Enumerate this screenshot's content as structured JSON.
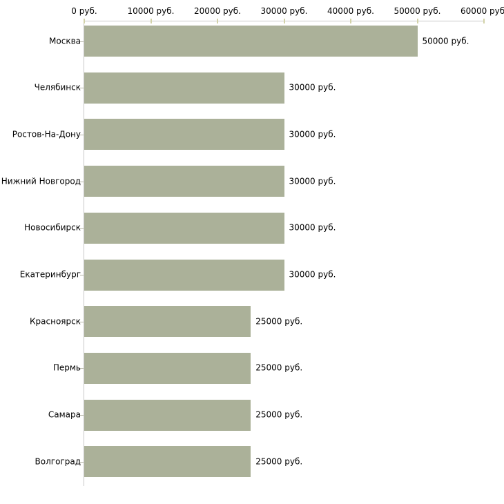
{
  "chart_data": {
    "type": "bar",
    "orientation": "horizontal",
    "title": "",
    "categories": [
      "Москва",
      "Челябинск",
      "Ростов-На-Дону",
      "Нижний Новгород",
      "Новосибирск",
      "Екатеринбург",
      "Красноярск",
      "Пермь",
      "Самара",
      "Волгоград"
    ],
    "values": [
      50000,
      30000,
      30000,
      30000,
      30000,
      30000,
      25000,
      25000,
      25000,
      25000
    ],
    "value_labels": [
      "50000 руб.",
      "30000 руб.",
      "30000 руб.",
      "30000 руб.",
      "30000 руб.",
      "30000 руб.",
      "25000 руб.",
      "25000 руб.",
      "25000 руб.",
      "25000 руб."
    ],
    "unit": "руб.",
    "x_axis": {
      "position": "top",
      "min": 0,
      "max": 60000,
      "tick_step": 10000,
      "tick_labels": [
        "0 руб.",
        "10000 руб.",
        "20000 руб.",
        "30000 руб.",
        "40000 руб.",
        "50000 руб.",
        "60000 руб."
      ]
    },
    "legend": "none",
    "grid": false,
    "colors": {
      "bar": "#abb199",
      "axis_line": "#c6c6c6",
      "x_tick": "#d2d2a8",
      "y_tick": "#b4b4a4",
      "text": "#000000",
      "background": "#ffffff"
    }
  }
}
